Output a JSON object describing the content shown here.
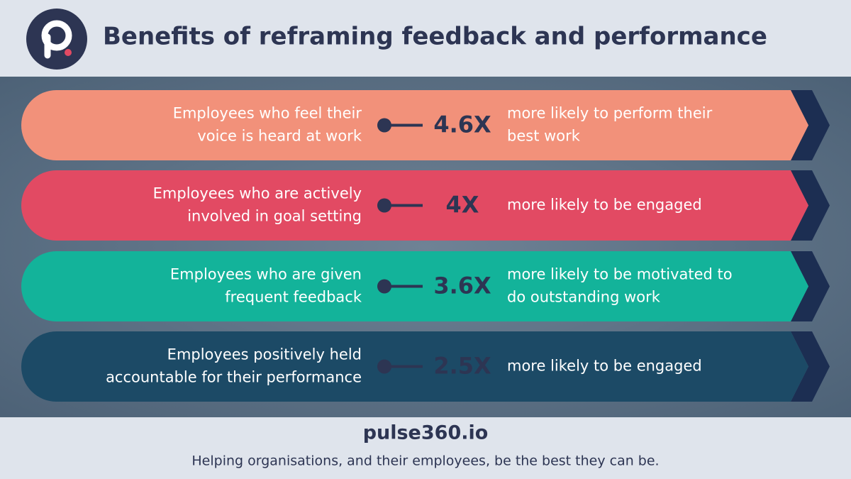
{
  "header": {
    "title": "Benefits of reframing feedback and performance"
  },
  "rows": [
    {
      "left": [
        "Employees who feel their",
        "voice is heard at work"
      ],
      "stat": "4.6X",
      "right": [
        "more likely to perform their",
        "best work"
      ]
    },
    {
      "left": [
        "Employees who are actively",
        "involved in goal setting"
      ],
      "stat": "4X",
      "right": [
        "more likely to be engaged"
      ]
    },
    {
      "left": [
        "Employees who are given",
        "frequent feedback"
      ],
      "stat": "3.6X",
      "right": [
        "more likely to be motivated to",
        "do outstanding work"
      ]
    },
    {
      "left": [
        "Employees positively held",
        "accountable for their performance"
      ],
      "stat": "2.5X",
      "right": [
        "more likely to be engaged"
      ]
    }
  ],
  "footer": {
    "site": "pulse360.io",
    "tagline": "Helping organisations, and their employees, be the best they can be."
  }
}
